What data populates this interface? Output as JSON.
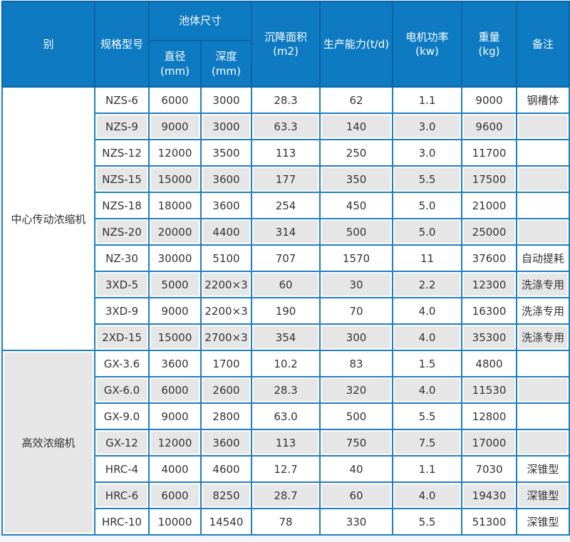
{
  "colors": {
    "page_bg": "#f2f6f9",
    "header_bg": "#0d7ac2",
    "header_border": "#0a65a4",
    "grid_border": "#1f7fc0",
    "row_gray": "#e6e6e6",
    "row_white": "#ffffff",
    "cell_text": "#333333",
    "header_text": "#ffffff"
  },
  "chart_data": {
    "type": "table",
    "header": {
      "category": "别",
      "model": "规格型号",
      "pool_group": "池体尺寸",
      "diameter": [
        "直径",
        "(mm)"
      ],
      "depth": [
        "深度(mm)"
      ],
      "settling_area": [
        "沉降面积",
        "(m2)"
      ],
      "capacity": [
        "生产能力(t/d)"
      ],
      "motor_power": [
        "电机功率",
        "(kw)"
      ],
      "weight": [
        "重量",
        "(kg)"
      ],
      "remark": [
        "备注"
      ]
    },
    "sections": [
      {
        "category": "中心传动浓缩机",
        "rows": [
          [
            "NZS-6",
            "6000",
            "3000",
            "28.3",
            "62",
            "1.1",
            "9000",
            "钢槽体"
          ],
          [
            "NZS-9",
            "9000",
            "3000",
            "63.3",
            "140",
            "3.0",
            "9600",
            ""
          ],
          [
            "NZS-12",
            "12000",
            "3500",
            "113",
            "250",
            "3.0",
            "11700",
            ""
          ],
          [
            "NZS-15",
            "15000",
            "3600",
            "177",
            "350",
            "5.5",
            "17500",
            ""
          ],
          [
            "NZS-18",
            "18000",
            "3600",
            "254",
            "450",
            "5.0",
            "21000",
            ""
          ],
          [
            "NZS-20",
            "20000",
            "4400",
            "314",
            "500",
            "5.0",
            "25000",
            ""
          ],
          [
            "NZ-30",
            "30000",
            "5100",
            "707",
            "1570",
            "11",
            "37600",
            "自动提耗"
          ],
          [
            "3XD-5",
            "5000",
            "2200×3",
            "60",
            "30",
            "2.2",
            "12300",
            "洗涤专用"
          ],
          [
            "3XD-9",
            "9000",
            "2200×3",
            "190",
            "70",
            "4.0",
            "16300",
            "洗涤专用"
          ],
          [
            "2XD-15",
            "15000",
            "2700×3",
            "354",
            "300",
            "4.0",
            "35300",
            "洗涤专用"
          ]
        ]
      },
      {
        "category": "高效浓缩机",
        "rows": [
          [
            "GX-3.6",
            "3600",
            "1700",
            "10.2",
            "83",
            "1.5",
            "4800",
            ""
          ],
          [
            "GX-6.0",
            "6000",
            "2600",
            "28.3",
            "320",
            "4.0",
            "11530",
            ""
          ],
          [
            "GX-9.0",
            "9000",
            "2800",
            "63.0",
            "500",
            "5.5",
            "12800",
            ""
          ],
          [
            "GX-12",
            "12000",
            "3600",
            "113",
            "750",
            "7.5",
            "17000",
            ""
          ],
          [
            "HRC-4",
            "4000",
            "4600",
            "12.7",
            "40",
            "1.1",
            "7030",
            "深锥型"
          ],
          [
            "HRC-6",
            "6000",
            "8250",
            "28.7",
            "60",
            "4.0",
            "19430",
            "深锥型"
          ],
          [
            "HRC-10",
            "10000",
            "14540",
            "78",
            "330",
            "5.5",
            "51300",
            "深锥型"
          ]
        ]
      }
    ]
  }
}
